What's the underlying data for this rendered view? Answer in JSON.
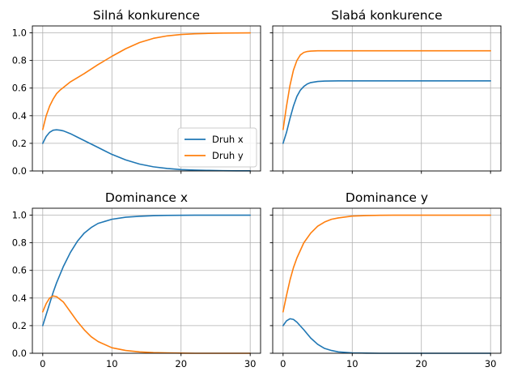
{
  "colors": {
    "series_x": "#1f77b4",
    "series_y": "#ff7f0e"
  },
  "chart_data": [
    {
      "type": "line",
      "title": "Silná konkurence",
      "xlim": [
        0,
        30
      ],
      "ylim": [
        0,
        1.05
      ],
      "xticks": [
        0,
        10,
        20,
        30
      ],
      "yticks": [
        0.0,
        0.2,
        0.4,
        0.6,
        0.8,
        1.0
      ],
      "show_xticklabels": false,
      "show_yticklabels": true,
      "grid": true,
      "legend": "lower right",
      "x": [
        0,
        0.5,
        1,
        1.5,
        2,
        2.5,
        3,
        4,
        5,
        6,
        8,
        10,
        12,
        14,
        16,
        18,
        20,
        22,
        24,
        26,
        28,
        30
      ],
      "series": [
        {
          "name": "Druh x",
          "values": [
            0.2,
            0.25,
            0.28,
            0.295,
            0.298,
            0.295,
            0.29,
            0.27,
            0.245,
            0.22,
            0.17,
            0.12,
            0.08,
            0.05,
            0.03,
            0.018,
            0.01,
            0.006,
            0.004,
            0.002,
            0.001,
            0.001
          ]
        },
        {
          "name": "Druh y",
          "values": [
            0.3,
            0.4,
            0.47,
            0.52,
            0.56,
            0.585,
            0.605,
            0.645,
            0.675,
            0.705,
            0.77,
            0.83,
            0.885,
            0.93,
            0.96,
            0.978,
            0.988,
            0.993,
            0.996,
            0.998,
            0.999,
            1.0
          ]
        }
      ]
    },
    {
      "type": "line",
      "title": "Slabá konkurence",
      "xlim": [
        0,
        30
      ],
      "ylim": [
        0,
        1.05
      ],
      "xticks": [
        0,
        10,
        20,
        30
      ],
      "yticks": [
        0.0,
        0.2,
        0.4,
        0.6,
        0.8,
        1.0
      ],
      "show_xticklabels": false,
      "show_yticklabels": false,
      "grid": true,
      "legend": null,
      "x": [
        0,
        0.5,
        1,
        1.5,
        2,
        2.5,
        3,
        3.5,
        4,
        5,
        6,
        8,
        10,
        15,
        20,
        25,
        30
      ],
      "series": [
        {
          "name": "Druh x",
          "values": [
            0.2,
            0.28,
            0.38,
            0.47,
            0.54,
            0.585,
            0.612,
            0.63,
            0.64,
            0.648,
            0.651,
            0.652,
            0.652,
            0.652,
            0.652,
            0.652,
            0.652
          ]
        },
        {
          "name": "Druh y",
          "values": [
            0.3,
            0.47,
            0.62,
            0.73,
            0.8,
            0.84,
            0.858,
            0.865,
            0.868,
            0.87,
            0.87,
            0.87,
            0.87,
            0.87,
            0.87,
            0.87,
            0.87
          ]
        }
      ]
    },
    {
      "type": "line",
      "title": "Dominance x",
      "xlim": [
        0,
        30
      ],
      "ylim": [
        0,
        1.05
      ],
      "xticks": [
        0,
        10,
        20,
        30
      ],
      "yticks": [
        0.0,
        0.2,
        0.4,
        0.6,
        0.8,
        1.0
      ],
      "show_xticklabels": true,
      "show_yticklabels": true,
      "grid": true,
      "legend": null,
      "x": [
        0,
        0.5,
        1,
        1.5,
        2,
        3,
        4,
        5,
        6,
        7,
        8,
        10,
        12,
        14,
        16,
        18,
        20,
        22,
        25,
        30
      ],
      "series": [
        {
          "name": "Druh x",
          "values": [
            0.2,
            0.28,
            0.36,
            0.44,
            0.51,
            0.63,
            0.73,
            0.81,
            0.87,
            0.91,
            0.94,
            0.97,
            0.985,
            0.992,
            0.996,
            0.998,
            0.999,
            1.0,
            1.0,
            1.0
          ]
        },
        {
          "name": "Druh y",
          "values": [
            0.3,
            0.36,
            0.4,
            0.415,
            0.41,
            0.37,
            0.3,
            0.23,
            0.17,
            0.12,
            0.085,
            0.04,
            0.02,
            0.01,
            0.005,
            0.003,
            0.001,
            0.0,
            0.0,
            0.0
          ]
        }
      ]
    },
    {
      "type": "line",
      "title": "Dominance y",
      "xlim": [
        0,
        30
      ],
      "ylim": [
        0,
        1.05
      ],
      "xticks": [
        0,
        10,
        20,
        30
      ],
      "yticks": [
        0.0,
        0.2,
        0.4,
        0.6,
        0.8,
        1.0
      ],
      "show_xticklabels": true,
      "show_yticklabels": false,
      "grid": true,
      "legend": null,
      "x": [
        0,
        0.5,
        1,
        1.5,
        2,
        3,
        4,
        5,
        6,
        7,
        8,
        10,
        12,
        14,
        16,
        18,
        20,
        25,
        30
      ],
      "series": [
        {
          "name": "Druh x",
          "values": [
            0.2,
            0.235,
            0.25,
            0.245,
            0.225,
            0.17,
            0.11,
            0.065,
            0.035,
            0.02,
            0.01,
            0.003,
            0.001,
            0.0,
            0.0,
            0.0,
            0.0,
            0.0,
            0.0
          ]
        },
        {
          "name": "Druh y",
          "values": [
            0.3,
            0.42,
            0.53,
            0.62,
            0.69,
            0.8,
            0.87,
            0.92,
            0.95,
            0.97,
            0.98,
            0.993,
            0.997,
            0.999,
            1.0,
            1.0,
            1.0,
            1.0,
            1.0
          ]
        }
      ]
    }
  ]
}
